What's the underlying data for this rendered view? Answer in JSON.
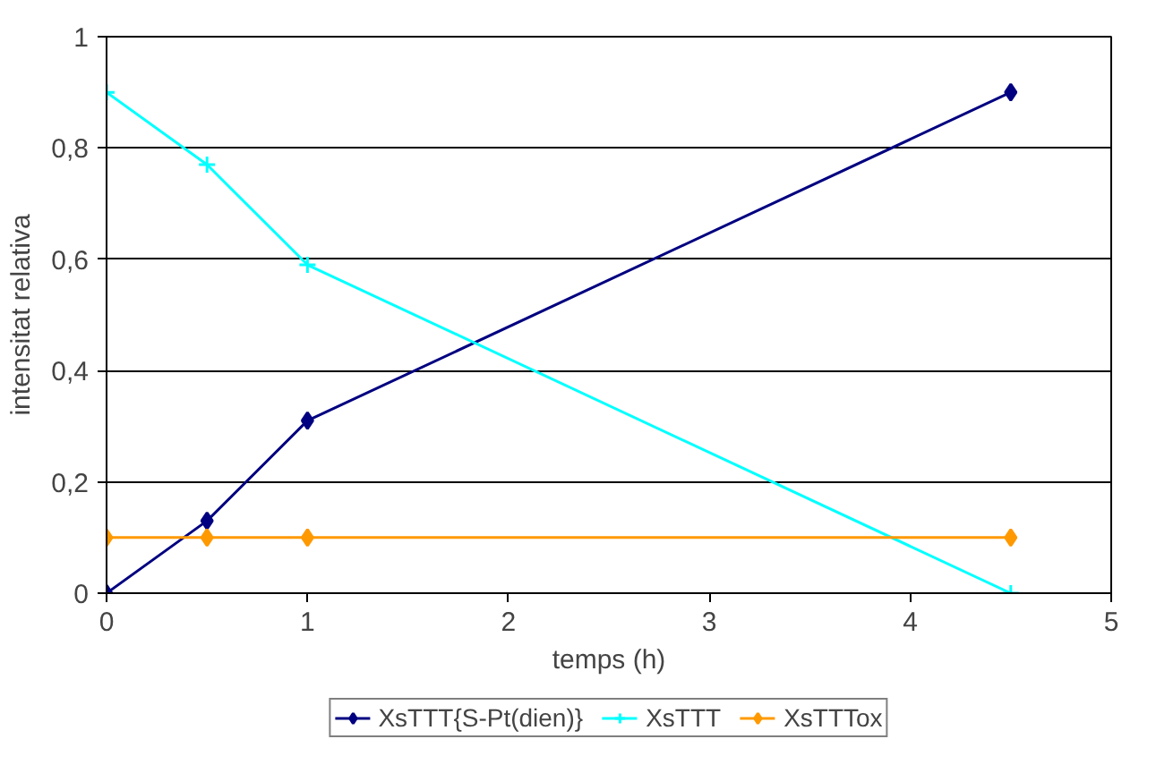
{
  "chart_data": {
    "type": "line",
    "xlabel": "temps (h)",
    "ylabel": "intensitat relativa",
    "xlim": [
      0,
      5
    ],
    "xticks": [
      0,
      1,
      2,
      3,
      4,
      5
    ],
    "ylim": [
      0,
      1
    ],
    "yticks": [
      0,
      {
        "value": 0.2,
        "label": "0,2"
      },
      {
        "value": 0.4,
        "label": "0,4"
      },
      {
        "value": 0.6,
        "label": "0,6"
      },
      {
        "value": 0.8,
        "label": "0,8"
      },
      1
    ],
    "grid": "y",
    "legend": "bottom",
    "line_style": "solid",
    "x": [
      0,
      0.5,
      1,
      4.5
    ],
    "series": [
      {
        "name": "XsTTT{S-Pt(dien)}",
        "color": "#000080",
        "marker": "diamond",
        "values": [
          0,
          0.13,
          0.31,
          0.9
        ]
      },
      {
        "name": "XsTTT",
        "color": "#00ffff",
        "marker": "cross",
        "values": [
          0.9,
          0.77,
          0.59,
          0
        ]
      },
      {
        "name": "XsTTTox",
        "color": "#ff9900",
        "marker": "diamond",
        "values": [
          0.1,
          0.1,
          0.1,
          0.1
        ]
      }
    ]
  }
}
